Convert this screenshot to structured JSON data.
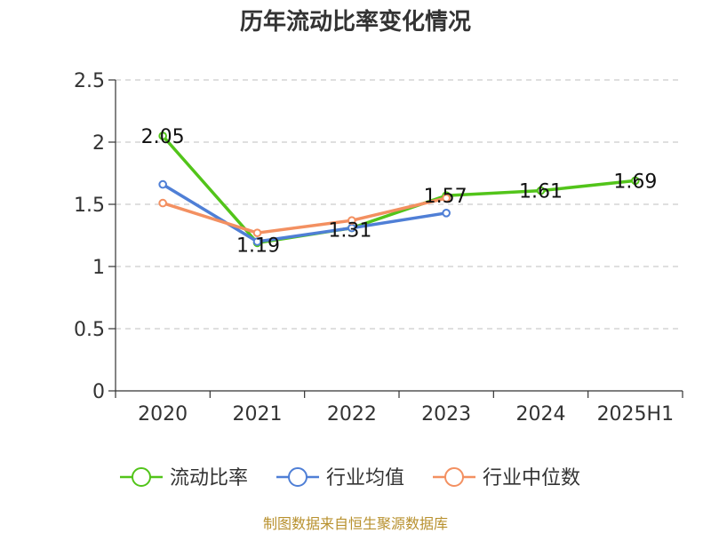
{
  "chart_data": {
    "type": "line",
    "title": "历年流动比率变化情况",
    "categories": [
      "2020",
      "2021",
      "2022",
      "2023",
      "2024",
      "2025H1"
    ],
    "ylim": [
      0,
      2.5
    ],
    "yticks": [
      "0",
      "0.5",
      "1",
      "1.5",
      "2",
      "2.5"
    ],
    "grid": true,
    "legend_position": "bottom",
    "series": [
      {
        "name": "流动比率",
        "color": "#52c41a",
        "values": [
          2.05,
          1.19,
          1.31,
          1.57,
          1.61,
          1.69
        ],
        "labels": [
          "2.05",
          "1.19",
          "1.31",
          "1.57",
          "1.61",
          "1.69"
        ]
      },
      {
        "name": "行业均值",
        "color": "#4f7fd6",
        "values": [
          1.66,
          1.2,
          1.31,
          1.43,
          null,
          null
        ]
      },
      {
        "name": "行业中位数",
        "color": "#f39061",
        "values": [
          1.51,
          1.27,
          1.37,
          1.55,
          null,
          null
        ]
      }
    ]
  },
  "source_text": "制图数据来自恒生聚源数据库"
}
